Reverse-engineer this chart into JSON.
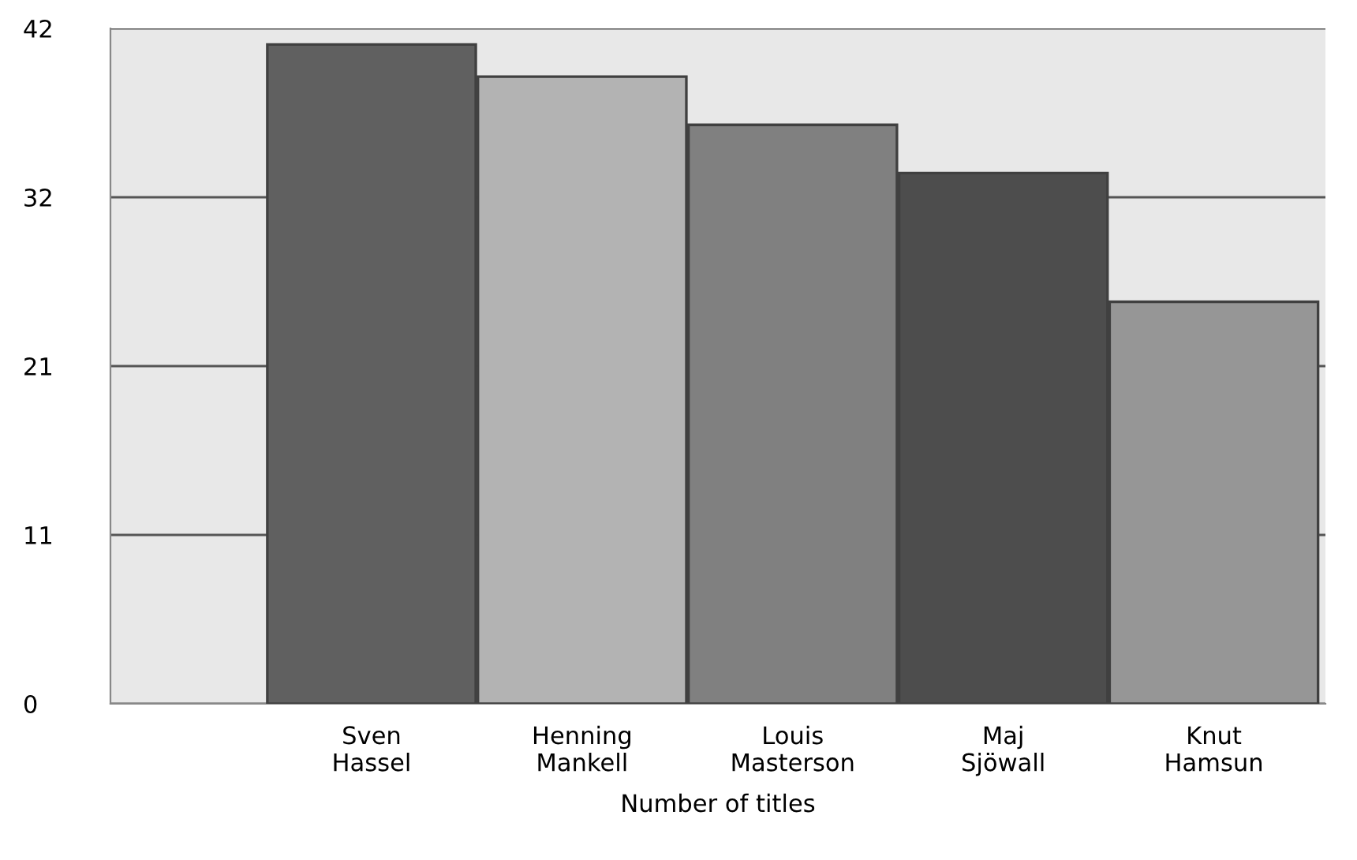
{
  "chart_data": {
    "type": "bar",
    "xlabel": "Number of titles",
    "categories": [
      "Sven Hassel",
      "Henning Mankell",
      "Louis Masterson",
      "Maj Sjöwall",
      "Knut Hamsun"
    ],
    "values": [
      41,
      39,
      36,
      33,
      25
    ],
    "colors": [
      "#606060",
      "#b3b3b3",
      "#808080",
      "#4d4d4d",
      "#969696"
    ],
    "ylim": [
      0,
      42
    ],
    "yticks": [
      0,
      {
        "value": 10.5,
        "label": "11"
      },
      21,
      {
        "value": 31.5,
        "label": "32"
      },
      42
    ],
    "grid": "y"
  }
}
